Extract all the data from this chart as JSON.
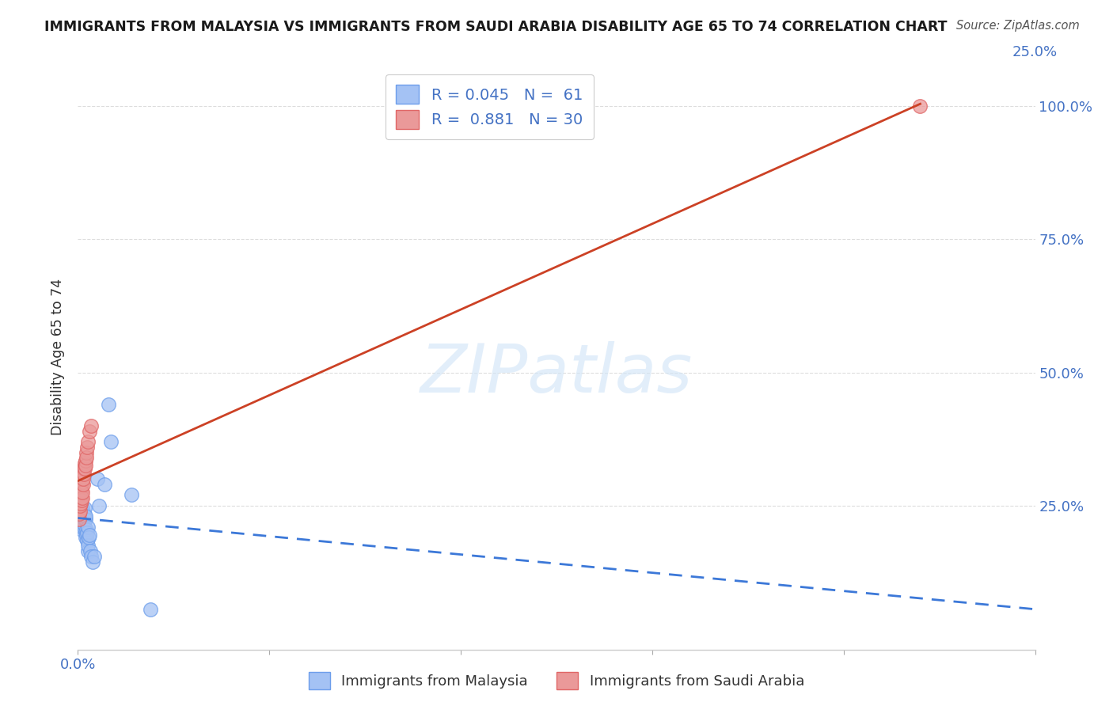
{
  "title": "IMMIGRANTS FROM MALAYSIA VS IMMIGRANTS FROM SAUDI ARABIA DISABILITY AGE 65 TO 74 CORRELATION CHART",
  "source": "Source: ZipAtlas.com",
  "tick_color": "#4472c4",
  "ylabel": "Disability Age 65 to 74",
  "xlim": [
    0.0,
    0.25
  ],
  "ylim": [
    -0.02,
    1.08
  ],
  "y_ticks": [
    0.0,
    0.25,
    0.5,
    0.75,
    1.0
  ],
  "y_tick_labels_right": [
    "",
    "25.0%",
    "50.0%",
    "75.0%",
    "100.0%"
  ],
  "malaysia_color": "#a4c2f4",
  "malaysia_edge_color": "#6d9eeb",
  "saudi_color": "#ea9999",
  "saudi_edge_color": "#e06666",
  "malaysia_line_color": "#3c78d8",
  "saudi_line_color": "#cc4125",
  "malaysia_R": 0.045,
  "malaysia_N": 61,
  "saudi_R": 0.881,
  "saudi_N": 30,
  "watermark_text": "ZIPatlas",
  "malaysia_x": [
    0.0002,
    0.0003,
    0.0004,
    0.0004,
    0.0005,
    0.0005,
    0.0005,
    0.0006,
    0.0006,
    0.0006,
    0.0007,
    0.0007,
    0.0007,
    0.0008,
    0.0008,
    0.0008,
    0.0009,
    0.0009,
    0.0009,
    0.001,
    0.001,
    0.001,
    0.0011,
    0.0011,
    0.0012,
    0.0012,
    0.0012,
    0.0013,
    0.0013,
    0.0014,
    0.0014,
    0.0015,
    0.0015,
    0.0016,
    0.0016,
    0.0017,
    0.0018,
    0.0018,
    0.0019,
    0.002,
    0.002,
    0.0021,
    0.0022,
    0.0023,
    0.0024,
    0.0025,
    0.0026,
    0.0027,
    0.0028,
    0.003,
    0.0032,
    0.0035,
    0.0038,
    0.0042,
    0.005,
    0.0055,
    0.007,
    0.008,
    0.0085,
    0.014,
    0.019
  ],
  "malaysia_y": [
    0.245,
    0.23,
    0.215,
    0.26,
    0.225,
    0.24,
    0.255,
    0.21,
    0.23,
    0.25,
    0.22,
    0.24,
    0.26,
    0.215,
    0.225,
    0.245,
    0.205,
    0.225,
    0.245,
    0.215,
    0.23,
    0.25,
    0.225,
    0.24,
    0.21,
    0.225,
    0.245,
    0.22,
    0.24,
    0.215,
    0.235,
    0.21,
    0.235,
    0.215,
    0.23,
    0.225,
    0.23,
    0.245,
    0.225,
    0.19,
    0.23,
    0.205,
    0.195,
    0.185,
    0.2,
    0.21,
    0.165,
    0.175,
    0.19,
    0.195,
    0.165,
    0.155,
    0.145,
    0.155,
    0.3,
    0.25,
    0.29,
    0.44,
    0.37,
    0.27,
    0.055
  ],
  "saudi_x": [
    0.0003,
    0.0004,
    0.0005,
    0.0005,
    0.0006,
    0.0007,
    0.0007,
    0.0008,
    0.0008,
    0.0009,
    0.001,
    0.0011,
    0.0011,
    0.0012,
    0.0013,
    0.0013,
    0.0014,
    0.0015,
    0.0016,
    0.0017,
    0.0018,
    0.0019,
    0.002,
    0.0021,
    0.0022,
    0.0023,
    0.0025,
    0.003,
    0.0035,
    0.22
  ],
  "saudi_y": [
    0.225,
    0.235,
    0.24,
    0.27,
    0.25,
    0.265,
    0.285,
    0.255,
    0.275,
    0.28,
    0.26,
    0.265,
    0.295,
    0.275,
    0.29,
    0.32,
    0.3,
    0.32,
    0.31,
    0.33,
    0.32,
    0.335,
    0.325,
    0.35,
    0.34,
    0.36,
    0.37,
    0.39,
    0.4,
    1.0
  ],
  "background_color": "#ffffff",
  "grid_color": "#dddddd"
}
